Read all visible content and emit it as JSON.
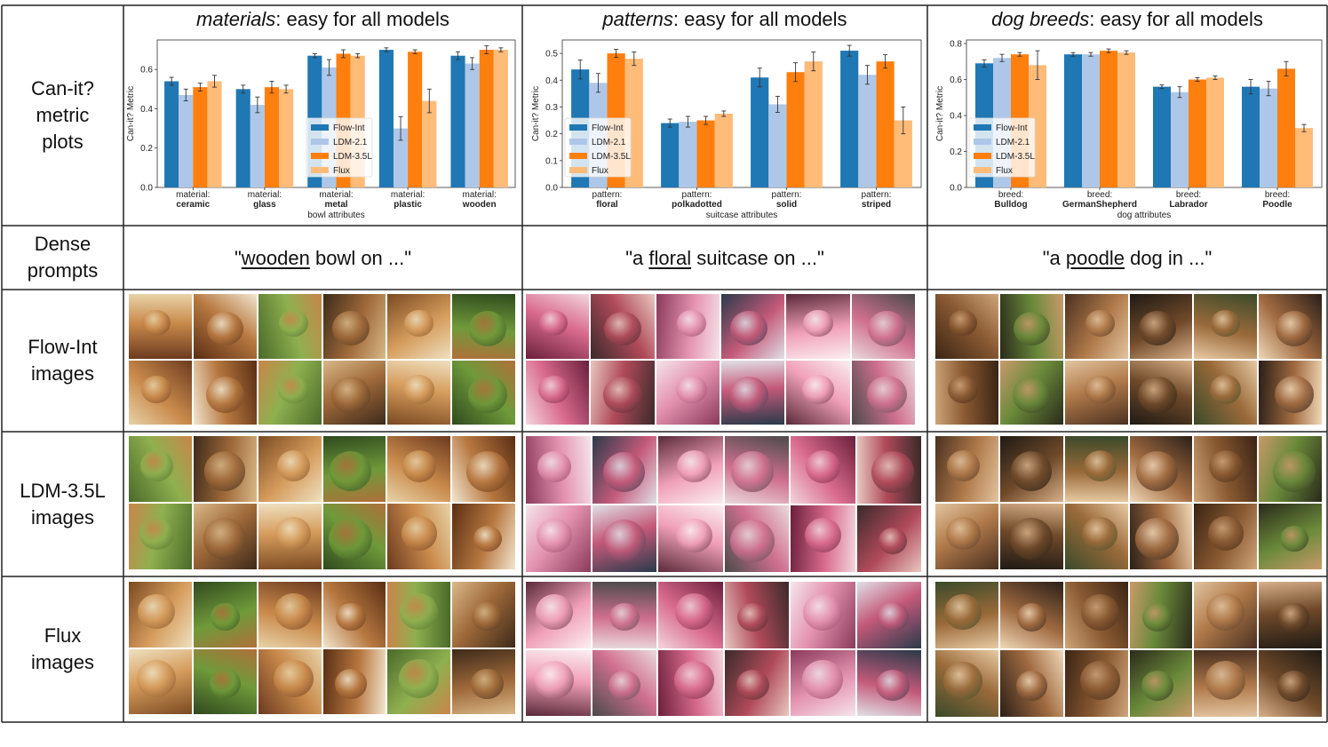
{
  "row_labels": {
    "metric": "Can-it?\nmetric\nplots",
    "prompts": "Dense\nprompts",
    "flow_int": "Flow-Int\nimages",
    "ldm": "LDM-3.5L\nimages",
    "flux": "Flux\nimages"
  },
  "columns": [
    {
      "title_italic": "materials",
      "title_rest": ": easy for all models",
      "prompt_pre": "\"",
      "prompt_u": "wooden",
      "prompt_post": " bowl on ...\""
    },
    {
      "title_italic": "patterns",
      "title_rest": ": easy for all models",
      "prompt_pre": "\"a ",
      "prompt_u": "floral",
      "prompt_post": " suitcase on ...\""
    },
    {
      "title_italic": "dog breeds",
      "title_rest": ": easy for all models",
      "prompt_pre": "\"a ",
      "prompt_u": "poodle",
      "prompt_post": " dog in ...\""
    }
  ],
  "series_colors": [
    "#1f77b4",
    "#aec7e8",
    "#ff7f0e",
    "#ffbb78"
  ],
  "chart_data": [
    {
      "type": "bar",
      "ylabel": "Can-it? Metric",
      "xlabel": "bowl attributes",
      "ylim": [
        0,
        0.75
      ],
      "yticks": [
        0.0,
        0.2,
        0.4,
        0.6
      ],
      "legend_placement": "center-right",
      "categories": [
        {
          "prefix": "material:",
          "name": "ceramic"
        },
        {
          "prefix": "material:",
          "name": "glass"
        },
        {
          "prefix": "material:",
          "name": "metal"
        },
        {
          "prefix": "material:",
          "name": "plastic"
        },
        {
          "prefix": "material:",
          "name": "wooden"
        }
      ],
      "series": [
        {
          "name": "Flow-Int",
          "values": [
            0.54,
            0.5,
            0.67,
            0.7,
            0.67
          ],
          "errors": [
            0.02,
            0.02,
            0.01,
            0.01,
            0.02
          ]
        },
        {
          "name": "LDM-2.1",
          "values": [
            0.47,
            0.42,
            0.61,
            0.3,
            0.63
          ],
          "errors": [
            0.03,
            0.04,
            0.04,
            0.06,
            0.03
          ]
        },
        {
          "name": "LDM-3.5L",
          "values": [
            0.51,
            0.51,
            0.68,
            0.69,
            0.7
          ],
          "errors": [
            0.02,
            0.03,
            0.02,
            0.01,
            0.02
          ]
        },
        {
          "name": "Flux",
          "values": [
            0.54,
            0.5,
            0.67,
            0.44,
            0.7
          ],
          "errors": [
            0.03,
            0.02,
            0.01,
            0.06,
            0.01
          ]
        }
      ]
    },
    {
      "type": "bar",
      "ylabel": "Can-it? Metric",
      "xlabel": "suitcase attributes",
      "ylim": [
        0,
        0.55
      ],
      "yticks": [
        0.0,
        0.1,
        0.2,
        0.3,
        0.4,
        0.5
      ],
      "legend_placement": "lower-left",
      "categories": [
        {
          "prefix": "pattern:",
          "name": "floral"
        },
        {
          "prefix": "pattern:",
          "name": "polkadotted"
        },
        {
          "prefix": "pattern:",
          "name": "solid"
        },
        {
          "prefix": "pattern:",
          "name": "striped"
        }
      ],
      "series": [
        {
          "name": "Flow-Int",
          "values": [
            0.44,
            0.24,
            0.41,
            0.51
          ],
          "errors": [
            0.035,
            0.015,
            0.035,
            0.02
          ]
        },
        {
          "name": "LDM-2.1",
          "values": [
            0.39,
            0.245,
            0.31,
            0.42
          ],
          "errors": [
            0.035,
            0.02,
            0.03,
            0.035
          ]
        },
        {
          "name": "LDM-3.5L",
          "values": [
            0.5,
            0.25,
            0.43,
            0.47
          ],
          "errors": [
            0.015,
            0.015,
            0.035,
            0.025
          ]
        },
        {
          "name": "Flux",
          "values": [
            0.48,
            0.275,
            0.47,
            0.25
          ],
          "errors": [
            0.025,
            0.01,
            0.035,
            0.05
          ]
        }
      ]
    },
    {
      "type": "bar",
      "ylabel": "Can-it? Metric",
      "xlabel": "dog attributes",
      "ylim": [
        0,
        0.82
      ],
      "yticks": [
        0.0,
        0.2,
        0.4,
        0.6,
        0.8
      ],
      "legend_placement": "lower-left",
      "categories": [
        {
          "prefix": "breed:",
          "name": "Bulldog"
        },
        {
          "prefix": "breed:",
          "name": "GermanShepherd"
        },
        {
          "prefix": "breed:",
          "name": "Labrador"
        },
        {
          "prefix": "breed:",
          "name": "Poodle"
        }
      ],
      "series": [
        {
          "name": "Flow-Int",
          "values": [
            0.69,
            0.74,
            0.56,
            0.56
          ],
          "errors": [
            0.02,
            0.01,
            0.01,
            0.04
          ]
        },
        {
          "name": "LDM-2.1",
          "values": [
            0.72,
            0.74,
            0.53,
            0.55
          ],
          "errors": [
            0.02,
            0.01,
            0.03,
            0.04
          ]
        },
        {
          "name": "LDM-3.5L",
          "values": [
            0.74,
            0.76,
            0.6,
            0.66
          ],
          "errors": [
            0.01,
            0.01,
            0.01,
            0.04
          ]
        },
        {
          "name": "Flux",
          "values": [
            0.68,
            0.75,
            0.61,
            0.33
          ],
          "errors": [
            0.08,
            0.01,
            0.01,
            0.02
          ]
        }
      ]
    }
  ]
}
